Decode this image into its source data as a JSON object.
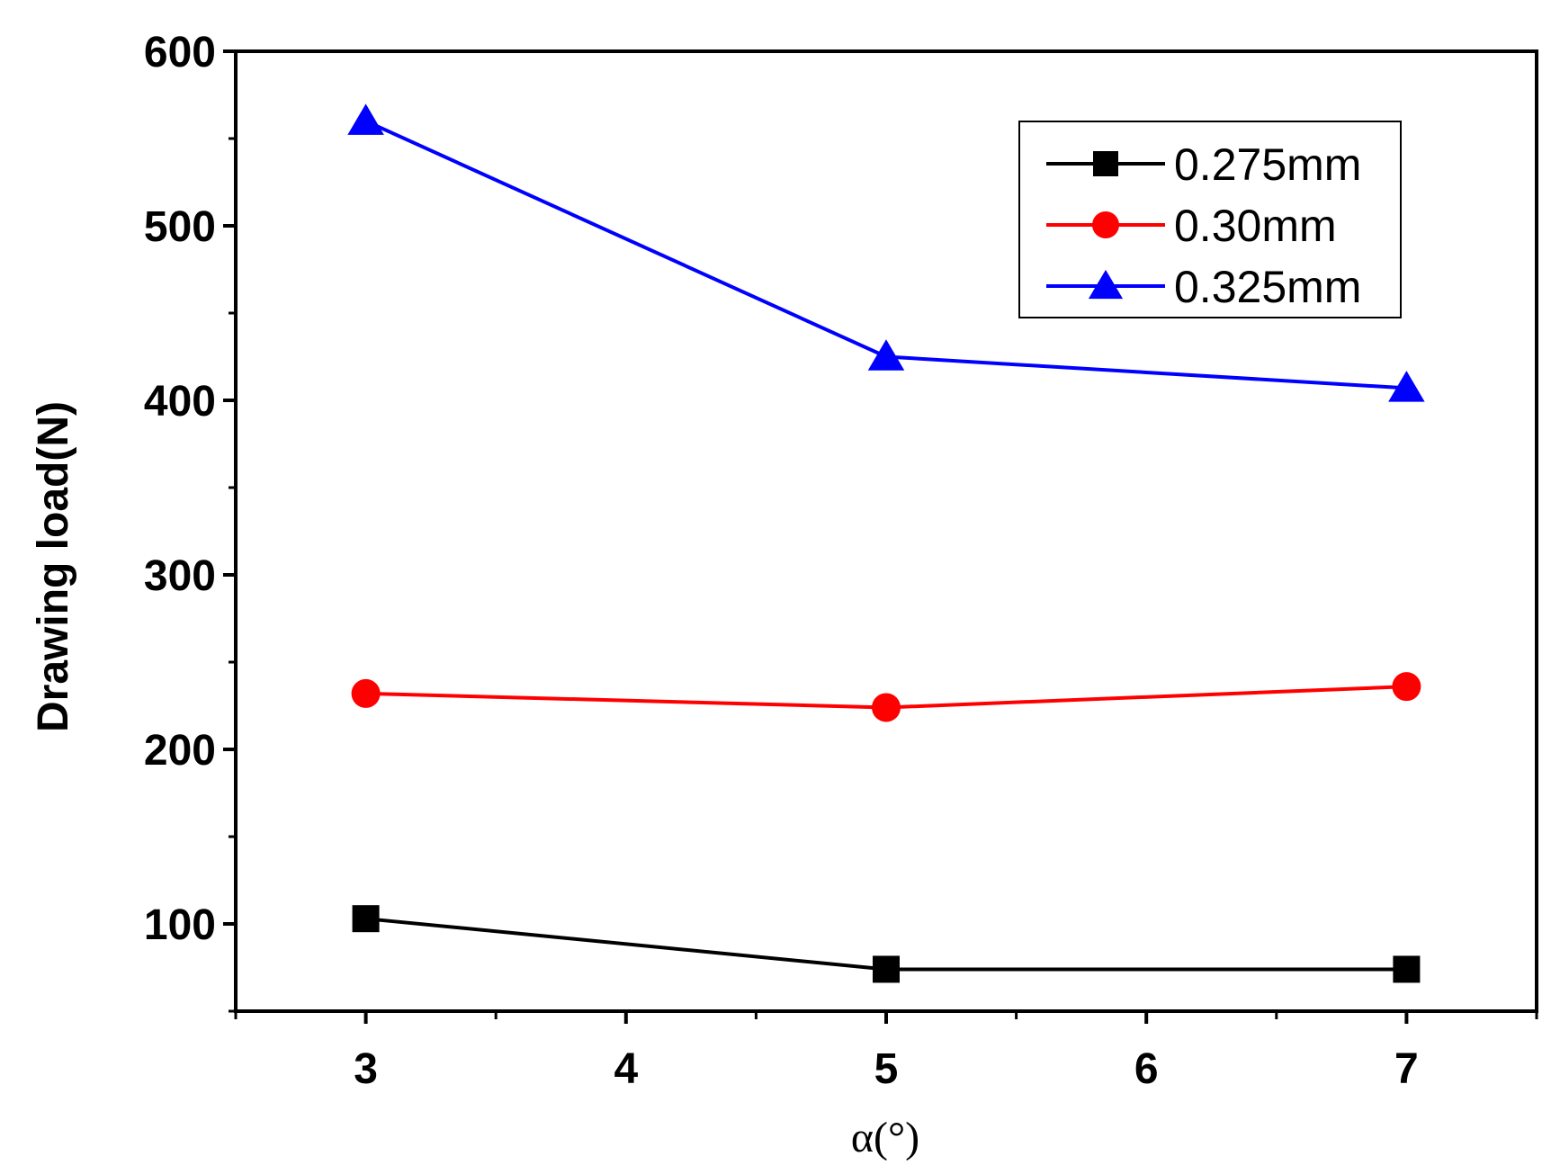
{
  "chart_data": {
    "type": "line",
    "title": "",
    "xlabel": "α(°)",
    "ylabel": "Drawing load(N)",
    "xlim": [
      2.5,
      7.5
    ],
    "ylim": [
      50,
      600
    ],
    "xticks": [
      3,
      4,
      5,
      6,
      7
    ],
    "xtick_labels": [
      "3",
      "4",
      "5",
      "6",
      "7"
    ],
    "yticks": [
      100,
      200,
      300,
      400,
      500,
      600
    ],
    "ytick_labels": [
      "100",
      "200",
      "300",
      "400",
      "500",
      "600"
    ],
    "x": [
      3,
      5,
      7
    ],
    "series": [
      {
        "name": "0.275mm",
        "color": "#000000",
        "marker": "square",
        "values": [
          103,
          74,
          74
        ]
      },
      {
        "name": "0.30mm",
        "color": "#ff0000",
        "marker": "circle",
        "values": [
          232,
          224,
          236
        ]
      },
      {
        "name": "0.325mm",
        "color": "#0000ff",
        "marker": "triangle",
        "values": [
          560,
          425,
          407
        ]
      }
    ],
    "legend_position": "top-right",
    "grid": false
  }
}
